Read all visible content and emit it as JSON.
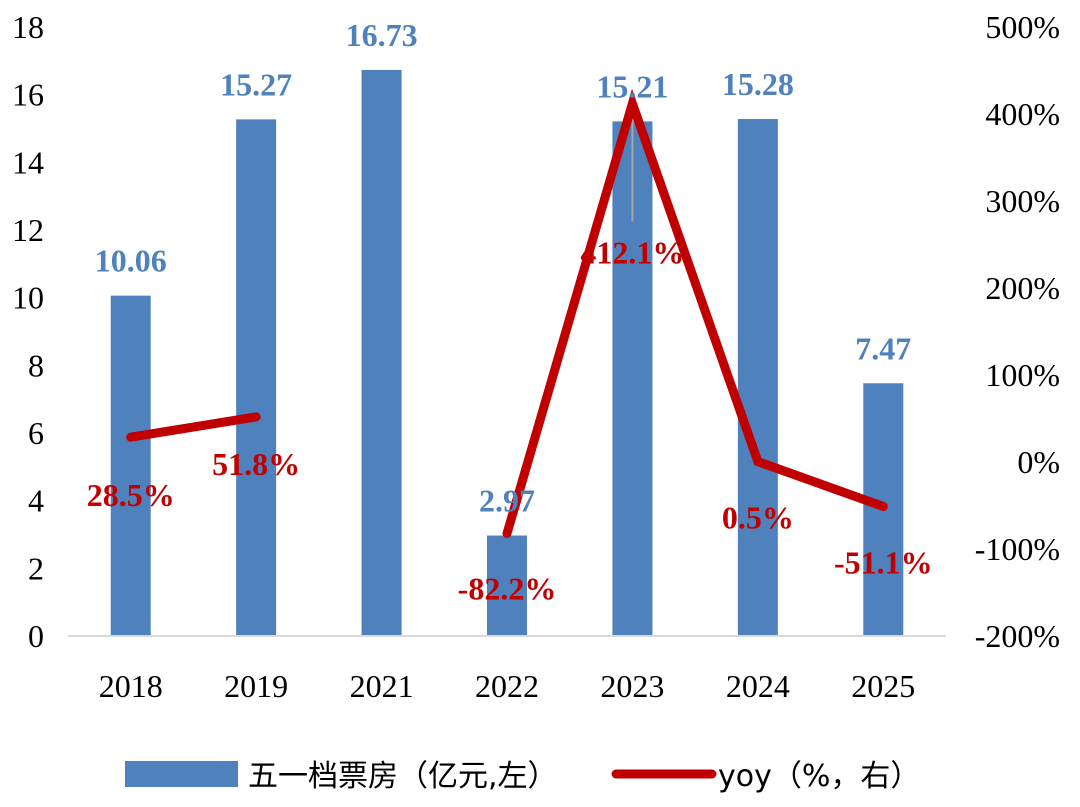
{
  "chart_data": {
    "type": "bar",
    "categories": [
      "2018",
      "2019",
      "2021",
      "2022",
      "2023",
      "2024",
      "2025"
    ],
    "series": [
      {
        "name": "五一档票房（亿元,左）",
        "type": "bar",
        "axis": "left",
        "values": [
          10.06,
          15.27,
          16.73,
          2.97,
          15.21,
          15.28,
          7.47
        ],
        "labels": [
          "10.06",
          "15.27",
          "16.73",
          "2.97",
          "15.21",
          "15.28",
          "7.47"
        ]
      },
      {
        "name": "yoy（%，右）",
        "type": "line",
        "axis": "right",
        "values": [
          28.5,
          51.8,
          null,
          -82.2,
          412.1,
          0.5,
          -51.1
        ],
        "labels": [
          "28.5%",
          "51.8%",
          "",
          "-82.2%",
          "412.1%",
          "0.5%",
          "-51.1%"
        ]
      }
    ],
    "yaxis_left": {
      "ylim": [
        0,
        18
      ],
      "ticks": [
        "0",
        "2",
        "4",
        "6",
        "8",
        "10",
        "12",
        "14",
        "16",
        "18"
      ]
    },
    "yaxis_right": {
      "ylim": [
        -200,
        500
      ],
      "ticks": [
        "-200%",
        "-100%",
        "0%",
        "100%",
        "200%",
        "300%",
        "400%",
        "500%"
      ]
    },
    "grid": false,
    "legend_position": "bottom",
    "colors": {
      "bar": "#4f81bd",
      "line": "#c00000",
      "bar_label": "#4f81bd",
      "line_label": "#c00000",
      "leader": "#a6a6a6"
    }
  }
}
